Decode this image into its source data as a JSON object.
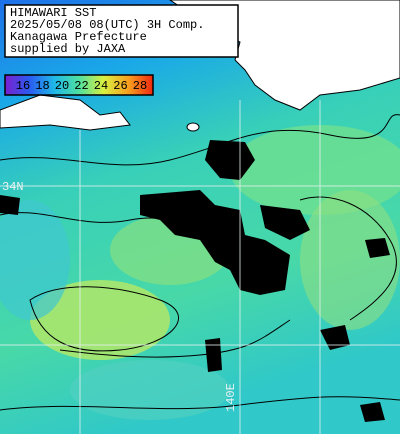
{
  "header": {
    "lines": [
      "HIMAWARI SST",
      "2025/05/08 08(UTC) 3H Comp.",
      "Kanagawa Prefecture",
      "supplied by JAXA"
    ]
  },
  "legend": {
    "labels": [
      16,
      18,
      20,
      22,
      24,
      26,
      28
    ],
    "colors": [
      "#7a1fd0",
      "#2a5cf0",
      "#1fb8e8",
      "#4fe0a0",
      "#d8f040",
      "#f8a020",
      "#f02810"
    ]
  },
  "grid_labels": {
    "lat": "34N",
    "lon": "140E"
  }
}
